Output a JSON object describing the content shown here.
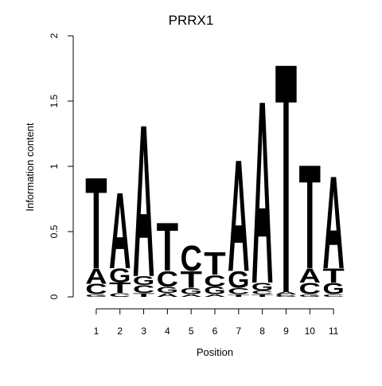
{
  "chart_data": {
    "type": "sequence-logo",
    "title": "PRRX1",
    "xlabel": "Position",
    "ylabel": "Information content",
    "ylim": [
      0,
      2
    ],
    "yticks": [
      0,
      0.5,
      1,
      1.5,
      2
    ],
    "ytick_labels": [
      "0",
      "0.5",
      "1",
      "1.5",
      "2"
    ],
    "positions": [
      1,
      2,
      3,
      4,
      5,
      6,
      7,
      8,
      9,
      10,
      11
    ],
    "xtick_labels": [
      "1",
      "2",
      "3",
      "4",
      "5",
      "6",
      "7",
      "8",
      "9",
      "10",
      "11"
    ],
    "letter_colors": {
      "A": "#00ee00",
      "C": "#0000ee",
      "G": "#ffa500",
      "T": "#ff0000"
    },
    "stacks": [
      [
        {
          "letter": "G",
          "height": 0.02
        },
        {
          "letter": "C",
          "height": 0.08
        },
        {
          "letter": "A",
          "height": 0.12
        },
        {
          "letter": "T",
          "height": 0.72
        }
      ],
      [
        {
          "letter": "C",
          "height": 0.03
        },
        {
          "letter": "T",
          "height": 0.08
        },
        {
          "letter": "G",
          "height": 0.11
        },
        {
          "letter": "A",
          "height": 0.6
        }
      ],
      [
        {
          "letter": "T",
          "height": 0.03
        },
        {
          "letter": "C",
          "height": 0.06
        },
        {
          "letter": "G",
          "height": 0.07
        },
        {
          "letter": "A",
          "height": 1.2
        }
      ],
      [
        {
          "letter": "A",
          "height": 0.03
        },
        {
          "letter": "G",
          "height": 0.05
        },
        {
          "letter": "C",
          "height": 0.12
        },
        {
          "letter": "T",
          "height": 0.38
        }
      ],
      [
        {
          "letter": "A",
          "height": 0.02
        },
        {
          "letter": "G",
          "height": 0.05
        },
        {
          "letter": "T",
          "height": 0.13
        },
        {
          "letter": "C",
          "height": 0.2
        }
      ],
      [
        {
          "letter": "A",
          "height": 0.02
        },
        {
          "letter": "G",
          "height": 0.06
        },
        {
          "letter": "C",
          "height": 0.09
        },
        {
          "letter": "T",
          "height": 0.18
        }
      ],
      [
        {
          "letter": "T",
          "height": 0.02
        },
        {
          "letter": "C",
          "height": 0.05
        },
        {
          "letter": "G",
          "height": 0.13
        },
        {
          "letter": "A",
          "height": 0.88
        }
      ],
      [
        {
          "letter": "T",
          "height": 0.02
        },
        {
          "letter": "C",
          "height": 0.03
        },
        {
          "letter": "G",
          "height": 0.06
        },
        {
          "letter": "A",
          "height": 1.44
        }
      ],
      [
        {
          "letter": "G",
          "height": 0.01
        },
        {
          "letter": "C",
          "height": 0.01
        },
        {
          "letter": "A",
          "height": 0.02
        },
        {
          "letter": "T",
          "height": 1.81
        }
      ],
      [
        {
          "letter": "G",
          "height": 0.02
        },
        {
          "letter": "C",
          "height": 0.09
        },
        {
          "letter": "A",
          "height": 0.11
        },
        {
          "letter": "T",
          "height": 0.82
        }
      ],
      [
        {
          "letter": "C",
          "height": 0.02
        },
        {
          "letter": "G",
          "height": 0.09
        },
        {
          "letter": "T",
          "height": 0.11
        },
        {
          "letter": "A",
          "height": 0.73
        }
      ]
    ]
  }
}
